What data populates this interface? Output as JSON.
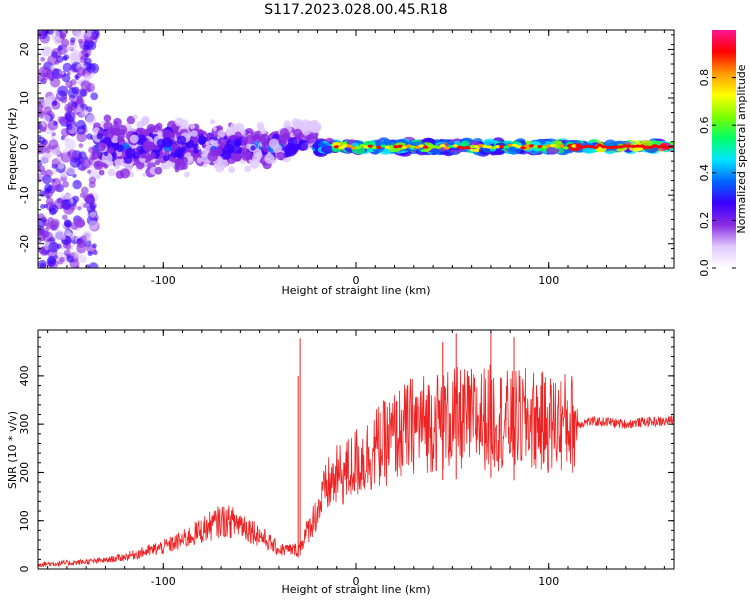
{
  "title": "S117.2023.028.00.45.R18",
  "colors": {
    "snr_line": "#ee2222",
    "frame": "#000000"
  },
  "chart_data": [
    {
      "type": "heatmap",
      "xlabel": "Height of straight line (km)",
      "ylabel": "Frequency (Hz)",
      "xlim": [
        -165,
        165
      ],
      "ylim": [
        -25,
        24
      ],
      "x_ticks": [
        -100,
        0,
        100
      ],
      "x_tick_labels": [
        "-100",
        "0",
        "100"
      ],
      "y_ticks": [
        -20,
        -10,
        0,
        10,
        20
      ],
      "y_tick_labels": [
        "-20",
        "-10",
        "0",
        "10",
        "20"
      ],
      "colorbar": {
        "label": "Normalized spectral amplitude",
        "range": [
          0,
          1
        ],
        "ticks": [
          0.0,
          0.2,
          0.4,
          0.6,
          0.8
        ],
        "tick_labels": [
          "0.0",
          "0.2",
          "0.4",
          "0.6",
          "0.8"
        ],
        "colormap": [
          "#ffffff",
          "#e0c8ff",
          "#8a2be2",
          "#3a00ff",
          "#0066ff",
          "#00e5ff",
          "#00ff66",
          "#7fff00",
          "#ffff00",
          "#ff9900",
          "#ff0000",
          "#ff1493"
        ]
      },
      "regions": [
        {
          "x_range": [
            -165,
            -135
          ],
          "freq_spread": 25,
          "amplitude": 0.2,
          "note_shown": ""
        },
        {
          "x_range": [
            -135,
            -20
          ],
          "freq_spread": 6,
          "amplitude": 0.3
        },
        {
          "x_range": [
            -20,
            110
          ],
          "freq_spread": 1.5,
          "amplitude": 0.7
        },
        {
          "x_range": [
            110,
            165
          ],
          "freq_spread": 1,
          "amplitude": 0.95
        }
      ],
      "grid": false
    },
    {
      "type": "line",
      "xlabel": "Height of straight line (km)",
      "ylabel": "SNR (10 * v/v)",
      "xlim": [
        -165,
        165
      ],
      "ylim": [
        0,
        495
      ],
      "x_ticks": [
        -100,
        0,
        100
      ],
      "x_tick_labels": [
        "-100",
        "0",
        "100"
      ],
      "y_ticks": [
        0,
        100,
        200,
        300,
        400
      ],
      "y_tick_labels": [
        "0",
        "100",
        "200",
        "300",
        "400"
      ],
      "series": [
        {
          "x": [
            -165,
            -150,
            -140,
            -130,
            -120,
            -110,
            -100,
            -90,
            -80,
            -70,
            -60,
            -50,
            -40,
            -30,
            -25,
            -20,
            -15,
            -10,
            -5,
            0,
            5,
            10,
            15,
            20,
            25,
            30,
            40,
            50,
            60,
            70,
            80,
            90,
            100,
            110,
            115,
            120,
            130,
            140,
            150,
            160,
            165
          ],
          "y": [
            10,
            12,
            15,
            18,
            25,
            35,
            45,
            60,
            80,
            100,
            95,
            70,
            40,
            40,
            80,
            120,
            170,
            190,
            200,
            220,
            230,
            250,
            260,
            275,
            285,
            300,
            305,
            310,
            310,
            315,
            305,
            310,
            300,
            305,
            300,
            305,
            305,
            300,
            305,
            305,
            310
          ],
          "spikes": [
            {
              "x": -29,
              "y": 478
            },
            {
              "x": -30,
              "y": 400
            },
            {
              "x": 45,
              "y": 470
            },
            {
              "x": 52,
              "y": 488
            },
            {
              "x": 70,
              "y": 490
            },
            {
              "x": 82,
              "y": 480
            }
          ]
        }
      ],
      "grid": false
    }
  ]
}
